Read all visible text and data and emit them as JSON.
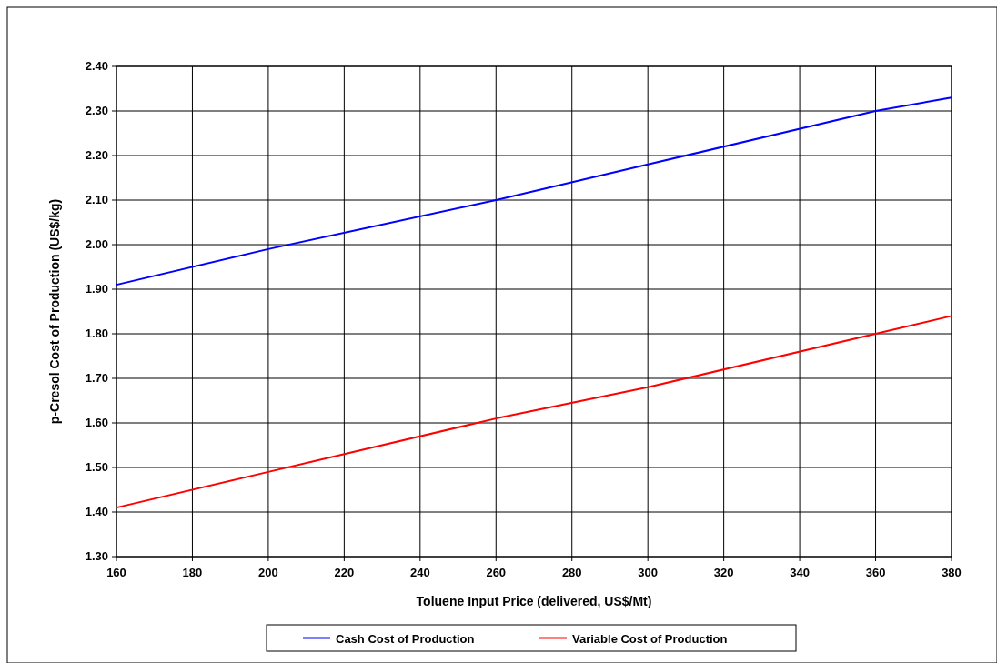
{
  "chart_data": {
    "type": "line",
    "xlabel": "Toluene Input Price (delivered, US$/Mt)",
    "ylabel": "p-Cresol Cost of Production (US$/kg)",
    "x": [
      160,
      200,
      260,
      300,
      360,
      380
    ],
    "series": [
      {
        "name": "Cash Cost of Production",
        "color": "#0000ff",
        "values": [
          1.91,
          1.99,
          2.1,
          2.18,
          2.3,
          2.33
        ]
      },
      {
        "name": "Variable Cost of Production",
        "color": "#ff0000",
        "values": [
          1.41,
          1.49,
          1.61,
          1.68,
          1.8,
          1.84
        ]
      }
    ],
    "xlim": [
      160,
      380
    ],
    "xticks": [
      160,
      180,
      200,
      220,
      240,
      260,
      280,
      300,
      320,
      340,
      360,
      380
    ],
    "ylim": [
      1.3,
      2.4
    ],
    "yticks": [
      {
        "value": 1.3,
        "label": "1.30"
      },
      {
        "value": 1.4,
        "label": "1.40"
      },
      {
        "value": 1.5,
        "label": "1.50"
      },
      {
        "value": 1.6,
        "label": "1.60"
      },
      {
        "value": 1.7,
        "label": "1.70"
      },
      {
        "value": 1.8,
        "label": "1.80"
      },
      {
        "value": 1.9,
        "label": "1.90"
      },
      {
        "value": 2.0,
        "label": "2.00"
      },
      {
        "value": 2.1,
        "label": "2.10"
      },
      {
        "value": 2.2,
        "label": "2.20"
      },
      {
        "value": 2.3,
        "label": "2.30"
      },
      {
        "value": 2.4,
        "label": "2.40"
      }
    ],
    "grid": true,
    "legend": "bottom",
    "marker": "none",
    "line_style": "solid"
  }
}
